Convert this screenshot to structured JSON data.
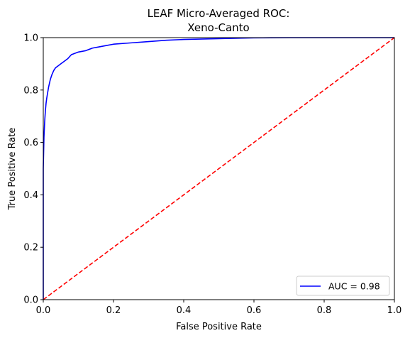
{
  "chart_data": {
    "type": "line",
    "title": [
      "LEAF Micro-Averaged ROC:",
      "Xeno-Canto"
    ],
    "xlabel": "False Positive Rate",
    "ylabel": "True Positive Rate",
    "xlim": [
      0.0,
      1.0
    ],
    "ylim": [
      0.0,
      1.0
    ],
    "x_ticks": [
      "0.0",
      "0.2",
      "0.4",
      "0.6",
      "0.8",
      "1.0"
    ],
    "y_ticks": [
      "0.0",
      "0.2",
      "0.4",
      "0.6",
      "0.8",
      "1.0"
    ],
    "grid": false,
    "legend_position": "lower-right",
    "series": [
      {
        "name": "AUC = 0.98",
        "color": "#0000ff",
        "style": "solid",
        "x": [
          0.0,
          0.0,
          0.002,
          0.004,
          0.006,
          0.008,
          0.01,
          0.015,
          0.02,
          0.025,
          0.03,
          0.035,
          0.04,
          0.05,
          0.06,
          0.07,
          0.08,
          0.09,
          0.1,
          0.12,
          0.14,
          0.16,
          0.18,
          0.2,
          0.25,
          0.3,
          0.35,
          0.4,
          0.5,
          0.6,
          0.7,
          0.8,
          1.0
        ],
        "y": [
          0.0,
          0.5,
          0.62,
          0.68,
          0.72,
          0.75,
          0.77,
          0.81,
          0.84,
          0.86,
          0.875,
          0.885,
          0.89,
          0.9,
          0.91,
          0.92,
          0.935,
          0.94,
          0.945,
          0.95,
          0.96,
          0.965,
          0.97,
          0.975,
          0.98,
          0.985,
          0.99,
          0.993,
          0.996,
          0.999,
          1.0,
          1.0,
          1.0
        ]
      },
      {
        "name": "",
        "color": "#ff0000",
        "style": "dashed",
        "x": [
          0.0,
          1.0
        ],
        "y": [
          0.0,
          1.0
        ]
      }
    ]
  }
}
